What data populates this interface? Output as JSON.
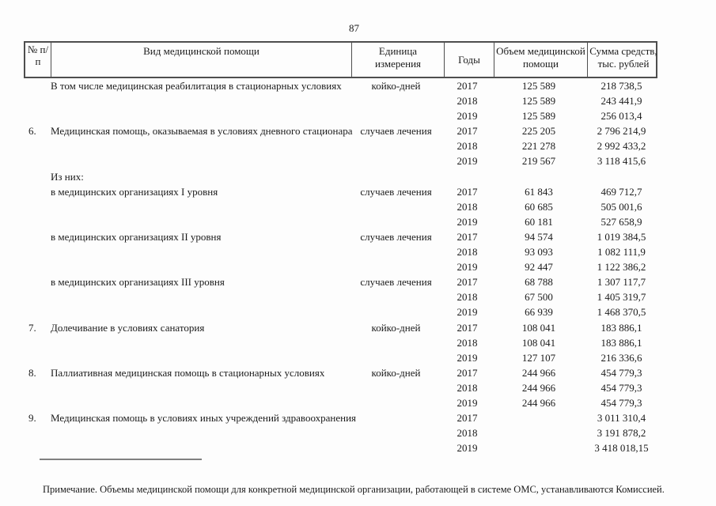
{
  "page_number": "87",
  "table": {
    "header": {
      "num": "№ п/п",
      "kind": "Вид медицинской помощи",
      "unit": "Единица измерения",
      "year": "Годы",
      "volume": "Объем медицинской помощи",
      "sum": "Сумма средств, тыс. рублей"
    },
    "rows": [
      {
        "num": "",
        "kind": "В том числе медицинская реабилитация в стационарных условиях",
        "unit": "койко-дней",
        "year": "2017",
        "volume": "125 589",
        "sum": "218 738,5"
      },
      {
        "num": "",
        "kind": "",
        "unit": "",
        "year": "2018",
        "volume": "125 589",
        "sum": "243 441,9"
      },
      {
        "num": "",
        "kind": "",
        "unit": "",
        "year": "2019",
        "volume": "125 589",
        "sum": "256 013,4"
      },
      {
        "num": "6.",
        "kind": "Медицинская помощь, оказываемая в условиях дневного стационара",
        "unit": "случаев лечения",
        "year": "2017",
        "volume": "225 205",
        "sum": "2 796 214,9"
      },
      {
        "num": "",
        "kind": "",
        "unit": "",
        "year": "2018",
        "volume": "221 278",
        "sum": "2 992 433,2"
      },
      {
        "num": "",
        "kind": "",
        "unit": "",
        "year": "2019",
        "volume": "219 567",
        "sum": "3 118 415,6"
      },
      {
        "num": "",
        "kind": "Из них:",
        "unit": "",
        "year": "",
        "volume": "",
        "sum": ""
      },
      {
        "num": "",
        "kind": "в медицинских организациях I уровня",
        "unit": "случаев лечения",
        "year": "2017",
        "volume": "61 843",
        "sum": "469 712,7"
      },
      {
        "num": "",
        "kind": "",
        "unit": "",
        "year": "2018",
        "volume": "60 685",
        "sum": "505 001,6"
      },
      {
        "num": "",
        "kind": "",
        "unit": "",
        "year": "2019",
        "volume": "60 181",
        "sum": "527 658,9"
      },
      {
        "num": "",
        "kind": "в медицинских организациях II уровня",
        "unit": "случаев лечения",
        "year": "2017",
        "volume": "94 574",
        "sum": "1 019 384,5"
      },
      {
        "num": "",
        "kind": "",
        "unit": "",
        "year": "2018",
        "volume": "93 093",
        "sum": "1 082 111,9"
      },
      {
        "num": "",
        "kind": "",
        "unit": "",
        "year": "2019",
        "volume": "92 447",
        "sum": "1 122 386,2"
      },
      {
        "num": "",
        "kind": "в медицинских организациях III уровня",
        "unit": "случаев лечения",
        "year": "2017",
        "volume": "68 788",
        "sum": "1 307 117,7"
      },
      {
        "num": "",
        "kind": "",
        "unit": "",
        "year": "2018",
        "volume": "67 500",
        "sum": "1 405 319,7"
      },
      {
        "num": "",
        "kind": "",
        "unit": "",
        "year": "2019",
        "volume": "66 939",
        "sum": "1 468 370,5"
      },
      {
        "num": "7.",
        "kind": "Долечивание в условиях санатория",
        "unit": "койко-дней",
        "year": "2017",
        "volume": "108 041",
        "sum": "183 886,1"
      },
      {
        "num": "",
        "kind": "",
        "unit": "",
        "year": "2018",
        "volume": "108 041",
        "sum": "183 886,1"
      },
      {
        "num": "",
        "kind": "",
        "unit": "",
        "year": "2019",
        "volume": "127 107",
        "sum": "216 336,6"
      },
      {
        "num": "8.",
        "kind": "Паллиативная медицинская помощь в стационарных условиях",
        "unit": "койко-дней",
        "year": "2017",
        "volume": "244 966",
        "sum": "454 779,3"
      },
      {
        "num": "",
        "kind": "",
        "unit": "",
        "year": "2018",
        "volume": "244 966",
        "sum": "454 779,3"
      },
      {
        "num": "",
        "kind": "",
        "unit": "",
        "year": "2019",
        "volume": "244 966",
        "sum": "454 779,3"
      },
      {
        "num": "9.",
        "kind": "Медицинская помощь в условиях иных учреждений здравоохранения",
        "unit": "",
        "year": "2017",
        "volume": "",
        "sum": "3 011 310,4"
      },
      {
        "num": "",
        "kind": "",
        "unit": "",
        "year": "2018",
        "volume": "",
        "sum": "3 191 878,2"
      },
      {
        "num": "",
        "kind": "",
        "unit": "",
        "year": "2019",
        "volume": "",
        "sum": "3 418 018,15"
      }
    ]
  },
  "note": "Примечание. Объемы медицинской помощи для конкретной медицинской организации, работающей в системе ОМС, устанавливаются Комиссией."
}
